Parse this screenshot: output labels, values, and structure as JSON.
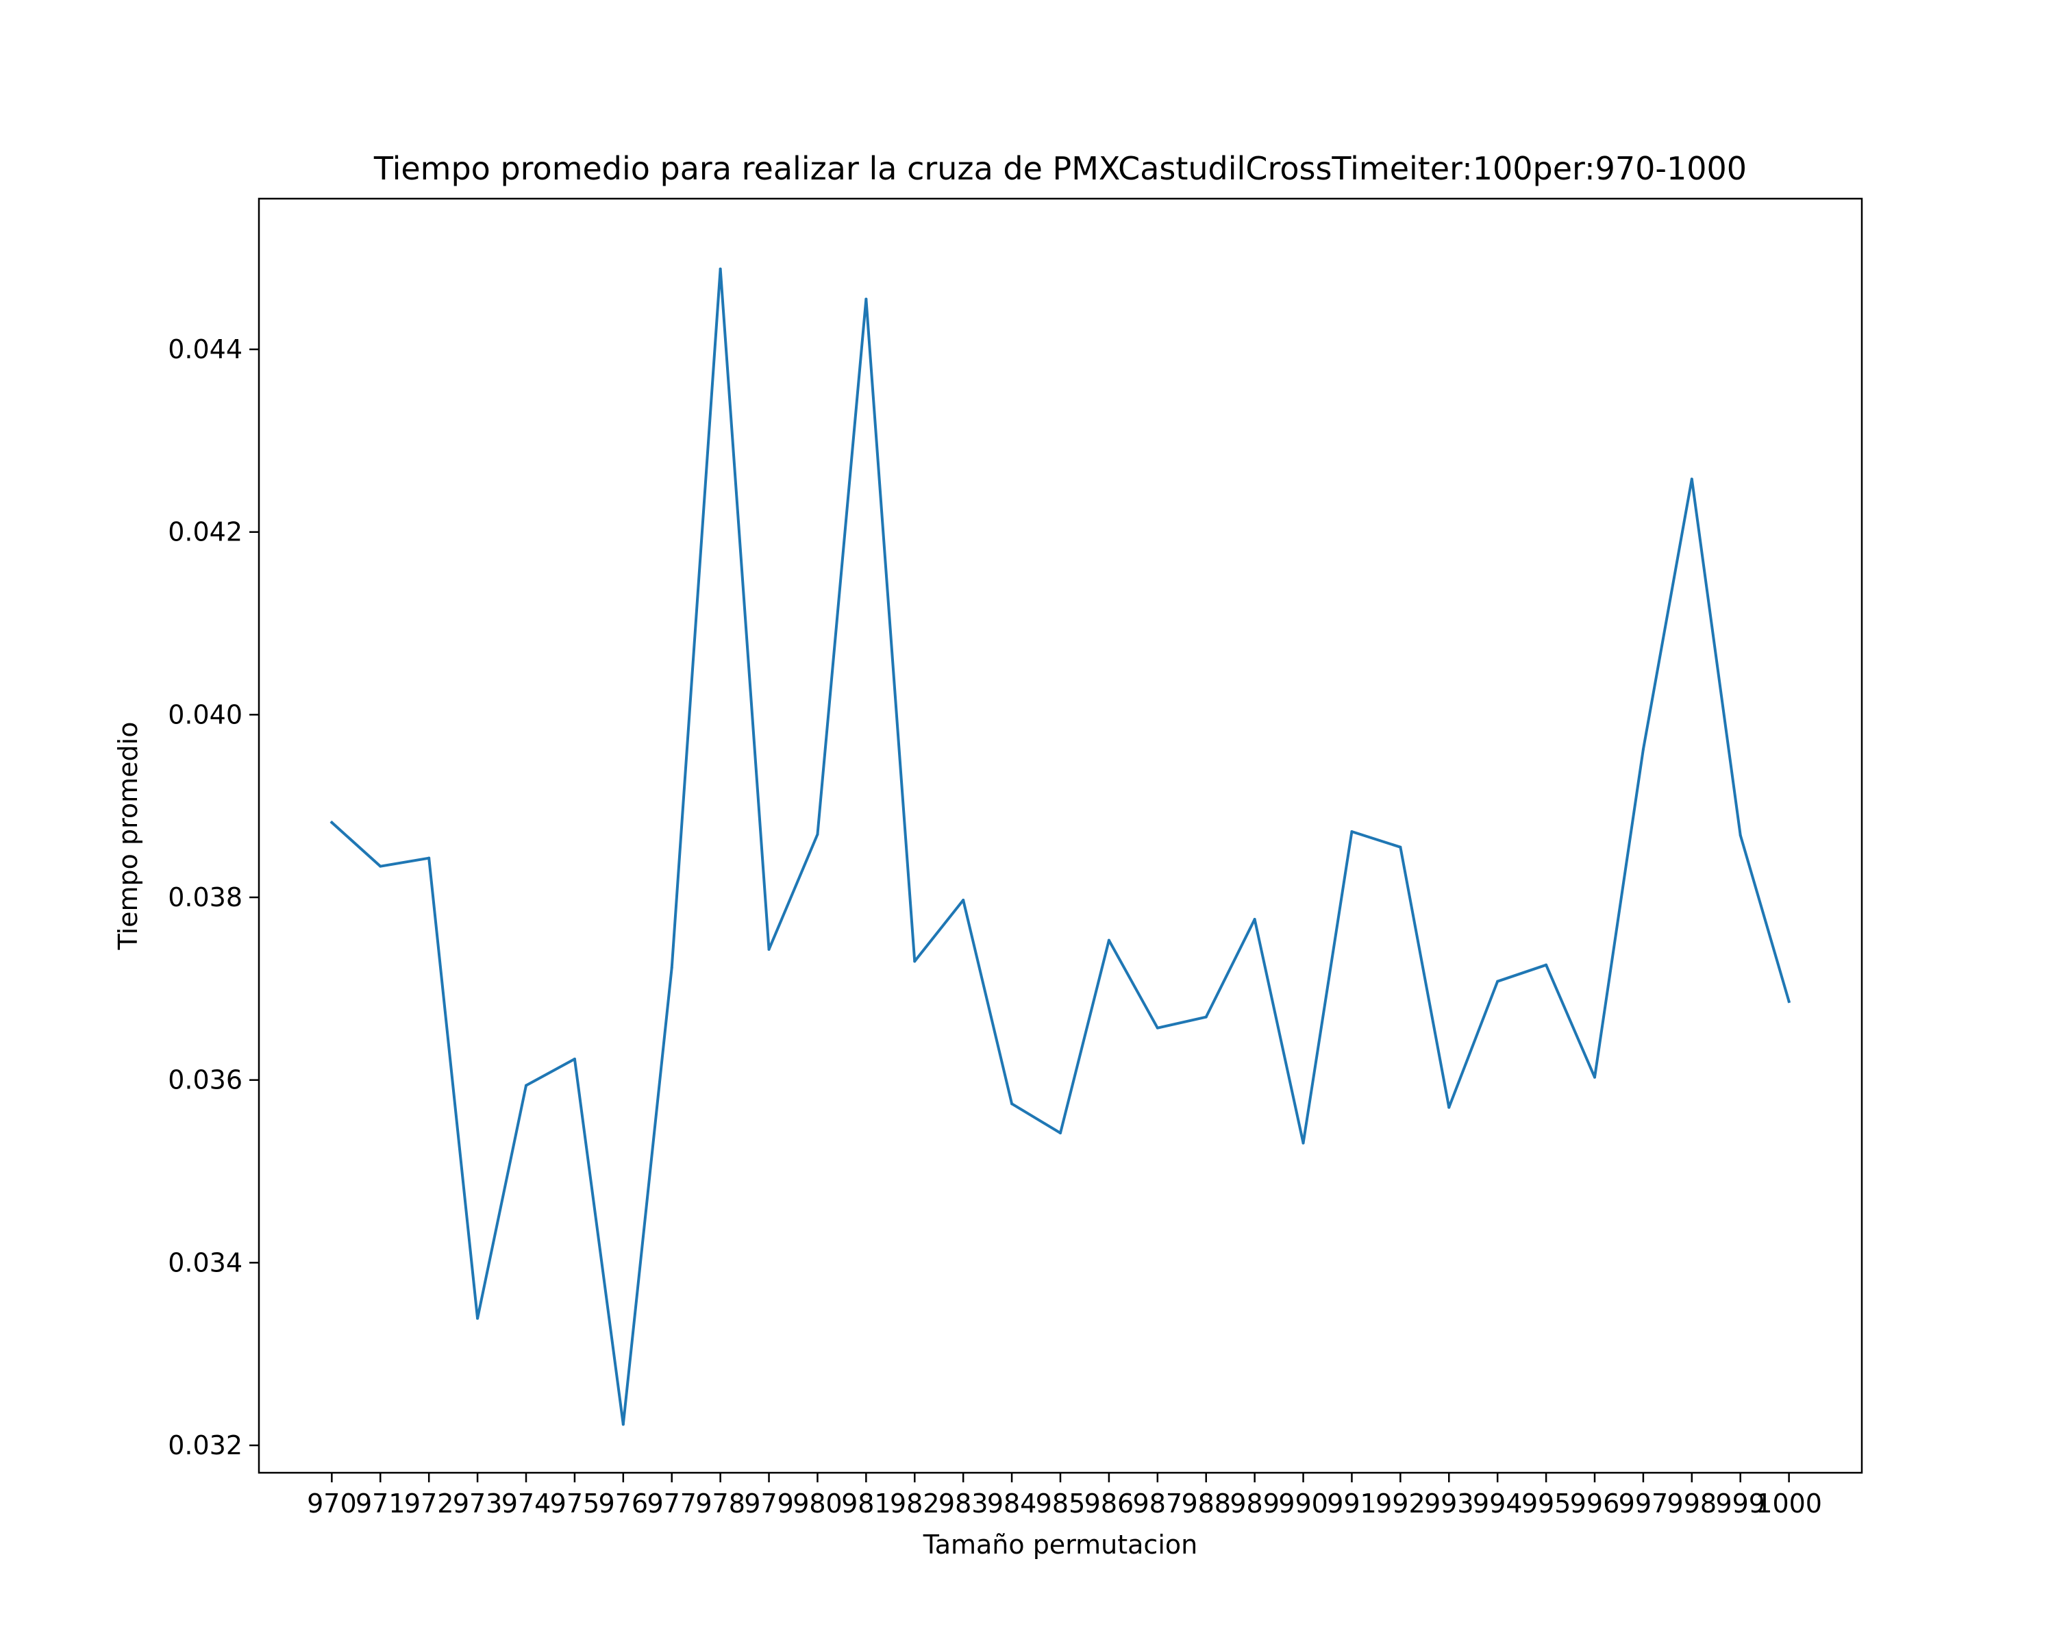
{
  "chart_data": {
    "type": "line",
    "title": "Tiempo promedio para realizar la cruza de PMXCastudilCrossTimeiter:100per:970-1000",
    "xlabel": "Tamaño permutacion",
    "ylabel": "Tiempo promedio",
    "x": [
      970,
      971,
      972,
      973,
      974,
      975,
      976,
      977,
      978,
      979,
      980,
      981,
      982,
      983,
      984,
      985,
      986,
      987,
      988,
      989,
      990,
      991,
      992,
      993,
      994,
      995,
      996,
      997,
      998,
      999,
      1000
    ],
    "x_tick_labels": [
      "970",
      "971",
      "972",
      "973",
      "974",
      "975",
      "976",
      "977",
      "978",
      "979",
      "980",
      "981",
      "982",
      "983",
      "984",
      "985",
      "986",
      "987",
      "988",
      "989",
      "990",
      "991",
      "992",
      "993",
      "994",
      "995",
      "996",
      "997",
      "998",
      "999",
      "1000"
    ],
    "xlim": [
      968.5,
      1001.5
    ],
    "ylim": [
      0.0317,
      0.04565
    ],
    "y_ticks": [
      0.032,
      0.034,
      0.036,
      0.038,
      0.04,
      0.042,
      0.044
    ],
    "y_tick_labels": [
      "0.032",
      "0.034",
      "0.036",
      "0.038",
      "0.040",
      "0.042",
      "0.044"
    ],
    "series": [
      {
        "color": "#1f77b4",
        "values": [
          0.03882,
          0.03834,
          0.03843,
          0.03339,
          0.03594,
          0.03623,
          0.03223,
          0.03723,
          0.04488,
          0.03743,
          0.03869,
          0.04455,
          0.0373,
          0.03797,
          0.03574,
          0.03542,
          0.03753,
          0.03657,
          0.03669,
          0.03776,
          0.03531,
          0.03872,
          0.03855,
          0.0357,
          0.03708,
          0.03726,
          0.03603,
          0.03962,
          0.04258,
          0.03868,
          0.03686
        ]
      }
    ],
    "grid": false,
    "legend": "none"
  }
}
